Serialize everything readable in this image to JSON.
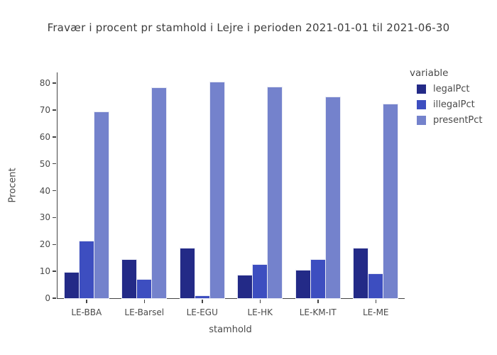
{
  "title": "Fravær i procent pr stamhold i Lejre i perioden 2021-01-01 til 2021-06-30",
  "chart_data": {
    "type": "bar",
    "title": "Fravær i procent pr stamhold i Lejre i perioden 2021-01-01 til 2021-06-30",
    "xlabel": "stamhold",
    "ylabel": "Procent",
    "categories": [
      "LE-BBA",
      "LE-Barsel",
      "LE-EGU",
      "LE-HK",
      "LE-KM-IT",
      "LE-ME"
    ],
    "series": [
      {
        "name": "legalPct",
        "color": "#232a87",
        "values": [
          9.4,
          14.3,
          18.5,
          8.5,
          10.2,
          18.6
        ]
      },
      {
        "name": "illegalPct",
        "color": "#3d4ec0",
        "values": [
          21.2,
          7.0,
          0.8,
          12.5,
          14.4,
          8.9
        ]
      },
      {
        "name": "presentPct",
        "color": "#7482cc",
        "values": [
          69.2,
          78.2,
          80.3,
          78.4,
          74.8,
          72.2
        ]
      }
    ],
    "ylim": [
      0,
      84
    ],
    "yticks": [
      0,
      10,
      20,
      30,
      40,
      50,
      60,
      70,
      80
    ],
    "grid": false,
    "legend_title": "variable",
    "legend_position": "right",
    "axis_color": "#444444",
    "text_color": "#4a4a4a",
    "background": "#ffffff"
  }
}
